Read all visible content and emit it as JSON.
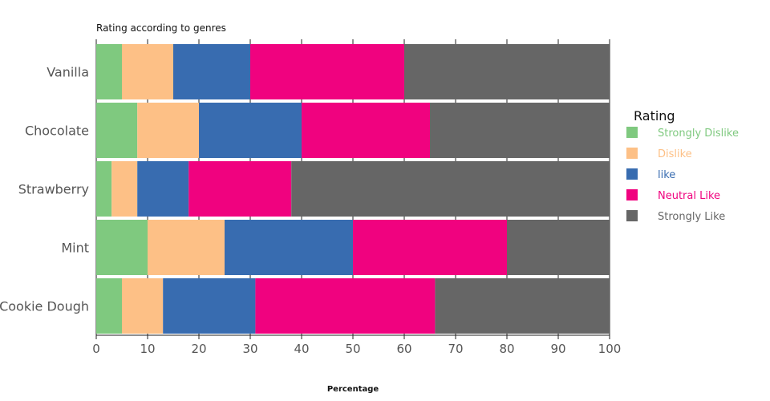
{
  "chart_data": {
    "type": "bar",
    "orientation": "horizontal",
    "stacked": true,
    "title": "Rating according to genres",
    "xlabel": "Percentage",
    "ylabel": "",
    "xlim": [
      0,
      100
    ],
    "xticks": [
      0,
      10,
      20,
      30,
      40,
      50,
      60,
      70,
      80,
      90,
      100
    ],
    "grid": true,
    "legend_title": "Rating",
    "legend_position": "right",
    "categories": [
      "Vanilla",
      "Chocolate",
      "Strawberry",
      "Mint",
      "Cookie Dough"
    ],
    "series": [
      {
        "name": "Strongly Dislike",
        "color": "#7fc97f",
        "values": [
          5,
          8,
          3,
          10,
          5
        ]
      },
      {
        "name": "Dislike",
        "color": "#fdc086",
        "values": [
          10,
          12,
          5,
          15,
          8
        ]
      },
      {
        "name": "like",
        "color": "#386cb0",
        "values": [
          15,
          20,
          10,
          25,
          18
        ]
      },
      {
        "name": "Neutral Like",
        "color": "#f0027f",
        "values": [
          30,
          25,
          20,
          30,
          35
        ]
      },
      {
        "name": "Strongly Like",
        "color": "#666666",
        "values": [
          40,
          35,
          62,
          20,
          34
        ]
      }
    ]
  }
}
